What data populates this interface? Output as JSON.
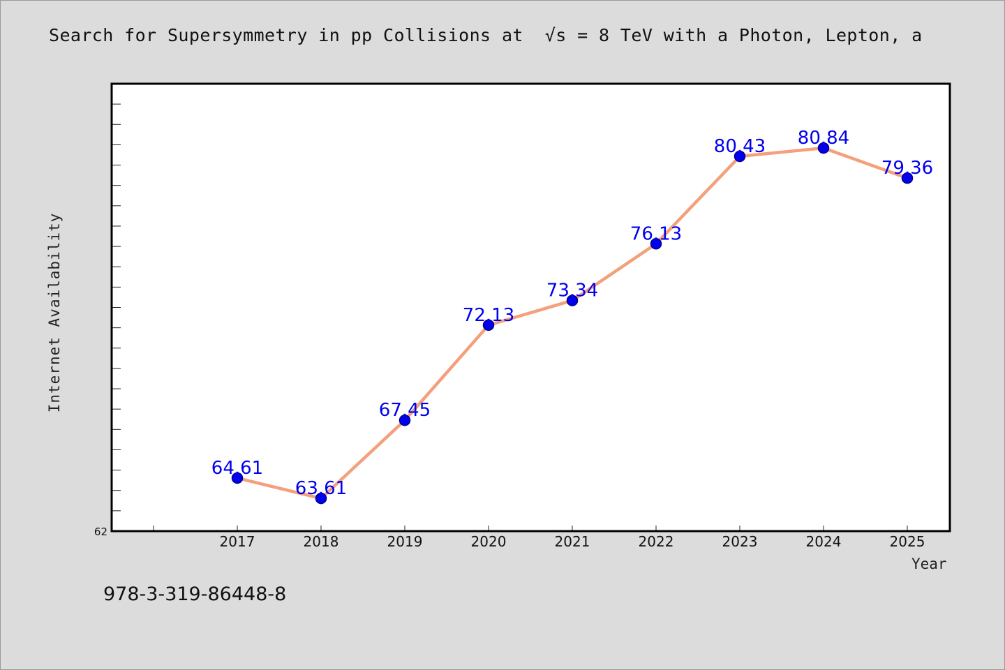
{
  "chart_data": {
    "type": "line",
    "title": "Search for Supersymmetry in pp Collisions at  √s = 8 TeV with a Photon, Lepton, a",
    "xlabel": "Year",
    "ylabel": "Internet Availability",
    "categories": [
      "2017",
      "2018",
      "2019",
      "2020",
      "2021",
      "2022",
      "2023",
      "2024",
      "2025"
    ],
    "series": [
      {
        "values": [
          64.61,
          63.61,
          67.45,
          72.13,
          73.34,
          76.13,
          80.43,
          80.84,
          79.36
        ],
        "labels": [
          "64.61",
          "63.61",
          "67.45",
          "72.13",
          "73.34",
          "76.13",
          "80.43",
          "80.84",
          "79.36"
        ]
      }
    ],
    "ylim": [
      62,
      84
    ],
    "y_min_tick_label": "62",
    "grid": false,
    "legend": "none",
    "colors": {
      "line": "#f4a07c",
      "marker": "#0000ee",
      "marker_edge": "#00008b",
      "data_label": "#0000ee"
    }
  },
  "annotation": {
    "isbn": "978-3-319-86448-8"
  }
}
